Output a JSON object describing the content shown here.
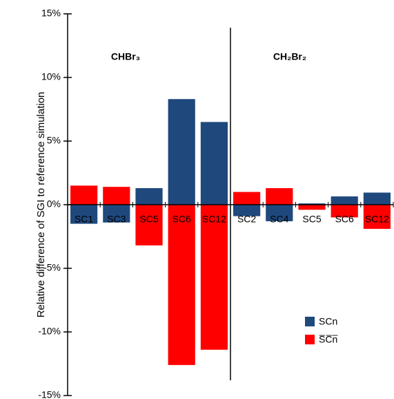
{
  "chart_data": {
    "type": "bar",
    "ylabel": "Relative difference of SGI to reference simulation",
    "annotations": [
      "CHBr₃",
      "CH₂Br₂"
    ],
    "categories": [
      "SC1",
      "SC3",
      "SC5",
      "SC6",
      "SC12",
      "SC2",
      "SC4",
      "SC5",
      "SC6",
      "SC12"
    ],
    "series": [
      {
        "name": "SCn",
        "color": "#1f497d",
        "values": [
          -1.5,
          -1.4,
          1.3,
          8.3,
          6.5,
          -0.9,
          -1.3,
          0.1,
          0.65,
          0.95
        ]
      },
      {
        "name": "S̅C̅n̅",
        "color": "#ff0000",
        "values": [
          1.5,
          1.4,
          -3.2,
          -12.6,
          -11.4,
          1.0,
          1.3,
          -0.4,
          -1.0,
          -1.9
        ]
      }
    ],
    "ylim": [
      -15,
      15
    ],
    "yticks": [
      {
        "value": -15,
        "label": "-15%"
      },
      {
        "value": -10,
        "label": "-10%"
      },
      {
        "value": -5,
        "label": "-5%"
      },
      {
        "value": 0,
        "label": "0%"
      },
      {
        "value": 5,
        "label": "5%"
      },
      {
        "value": 10,
        "label": "10%"
      },
      {
        "value": 15,
        "label": "15%"
      }
    ],
    "grid": false,
    "legend": "lower right"
  }
}
